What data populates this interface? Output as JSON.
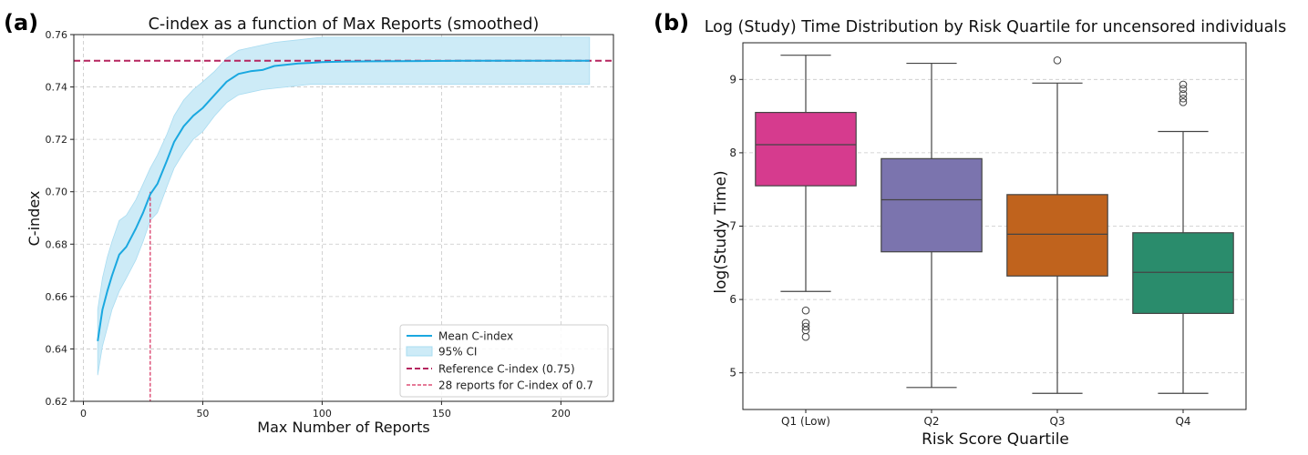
{
  "chart_data": [
    {
      "panel_label": "(a)",
      "type": "line",
      "title": "C-index as a function of Max Reports (smoothed)",
      "xlabel": "Max Number of Reports",
      "ylabel": "C-index",
      "xlim": [
        -4,
        222
      ],
      "ylim": [
        0.62,
        0.76
      ],
      "xticks": [
        0,
        50,
        100,
        150,
        200
      ],
      "yticks": [
        0.62,
        0.64,
        0.66,
        0.68,
        0.7,
        0.72,
        0.74,
        0.76
      ],
      "ytick_labels": [
        "0.62",
        "0.64",
        "0.66",
        "0.68",
        "0.70",
        "0.72",
        "0.74",
        "0.76"
      ],
      "grid": true,
      "mean": {
        "name": "Mean C-index",
        "color": "#1aa8e0",
        "x": [
          6,
          8,
          10,
          12,
          15,
          18,
          22,
          25,
          28,
          31,
          35,
          38,
          42,
          46,
          50,
          55,
          60,
          65,
          70,
          75,
          80,
          85,
          90,
          95,
          100,
          110,
          120,
          140,
          160,
          180,
          200,
          212
        ],
        "y": [
          0.643,
          0.655,
          0.662,
          0.668,
          0.676,
          0.679,
          0.686,
          0.692,
          0.699,
          0.703,
          0.712,
          0.719,
          0.725,
          0.729,
          0.732,
          0.737,
          0.742,
          0.745,
          0.746,
          0.7465,
          0.748,
          0.7485,
          0.749,
          0.7492,
          0.7495,
          0.7497,
          0.7498,
          0.7499,
          0.75,
          0.75,
          0.75,
          0.75
        ]
      },
      "ci": {
        "name": "95% CI",
        "color": "#cdebf7",
        "x": [
          6,
          8,
          10,
          12,
          15,
          18,
          22,
          25,
          28,
          31,
          35,
          38,
          42,
          46,
          50,
          55,
          60,
          65,
          70,
          75,
          80,
          85,
          90,
          95,
          100,
          110,
          120,
          140,
          160,
          180,
          200,
          212
        ],
        "lower": [
          0.63,
          0.641,
          0.648,
          0.655,
          0.662,
          0.667,
          0.674,
          0.681,
          0.689,
          0.692,
          0.702,
          0.709,
          0.715,
          0.72,
          0.723,
          0.729,
          0.734,
          0.737,
          0.738,
          0.739,
          0.7395,
          0.74,
          0.7405,
          0.741,
          0.741,
          0.741,
          0.741,
          0.741,
          0.741,
          0.741,
          0.741,
          0.741
        ],
        "upper": [
          0.655,
          0.667,
          0.675,
          0.681,
          0.689,
          0.691,
          0.697,
          0.703,
          0.709,
          0.714,
          0.722,
          0.729,
          0.735,
          0.739,
          0.742,
          0.746,
          0.751,
          0.754,
          0.755,
          0.756,
          0.757,
          0.7575,
          0.758,
          0.7585,
          0.759,
          0.759,
          0.759,
          0.759,
          0.759,
          0.759,
          0.759,
          0.759
        ]
      },
      "reference": {
        "name": "Reference C-index (0.75)",
        "value": 0.75,
        "color": "#b5245e"
      },
      "marker": {
        "name": "28 reports for C-index of 0.7",
        "x": 28,
        "y": 0.7,
        "color": "#d62b5b"
      },
      "legend_position": "lower-right"
    },
    {
      "panel_label": "(b)",
      "type": "box",
      "title": "Log (Study) Time Distribution by Risk Quartile for uncensored individuals",
      "xlabel": "Risk Score Quartile",
      "ylabel": "log(Study Time)",
      "ylim": [
        4.5,
        9.5
      ],
      "yticks": [
        5,
        6,
        7,
        8,
        9
      ],
      "ytick_labels": [
        "5",
        "6",
        "7",
        "8",
        "9"
      ],
      "grid": true,
      "categories": [
        "Q1 (Low)",
        "Q2",
        "Q3",
        "Q4"
      ],
      "boxes": [
        {
          "category": "Q1 (Low)",
          "whisker_low": 6.11,
          "q1": 7.55,
          "median": 8.11,
          "q3": 8.55,
          "whisker_high": 9.33,
          "outliers": [
            5.85,
            5.68,
            5.63,
            5.58,
            5.49
          ],
          "color": "#d63b8e"
        },
        {
          "category": "Q2",
          "whisker_low": 4.8,
          "q1": 6.65,
          "median": 7.36,
          "q3": 7.92,
          "whisker_high": 9.22,
          "outliers": [],
          "color": "#7b74ae"
        },
        {
          "category": "Q3",
          "whisker_low": 4.72,
          "q1": 6.32,
          "median": 6.89,
          "q3": 7.43,
          "whisker_high": 8.95,
          "outliers": [
            9.26
          ],
          "color": "#c0631d"
        },
        {
          "category": "Q4",
          "whisker_low": 4.72,
          "q1": 5.81,
          "median": 6.37,
          "q3": 6.91,
          "whisker_high": 8.29,
          "outliers": [
            8.93,
            8.87,
            8.8,
            8.74,
            8.69
          ],
          "color": "#2a8c6c"
        }
      ]
    }
  ]
}
